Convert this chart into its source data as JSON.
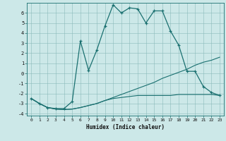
{
  "xlabel": "Humidex (Indice chaleur)",
  "background_color": "#cce8e8",
  "line_color": "#1a7070",
  "xlim": [
    -0.5,
    23.5
  ],
  "ylim": [
    -4.2,
    7.0
  ],
  "yticks": [
    -4,
    -3,
    -2,
    -1,
    0,
    1,
    2,
    3,
    4,
    5,
    6
  ],
  "xticks": [
    0,
    1,
    2,
    3,
    4,
    5,
    6,
    7,
    8,
    9,
    10,
    11,
    12,
    13,
    14,
    15,
    16,
    17,
    18,
    19,
    20,
    21,
    22,
    23
  ],
  "line1_x": [
    0,
    1,
    2,
    3,
    4,
    5,
    6,
    7,
    8,
    9,
    10,
    11,
    12,
    13,
    14,
    15,
    16,
    17,
    18,
    19,
    20,
    21,
    22,
    23
  ],
  "line1_y": [
    -2.5,
    -3.0,
    -3.4,
    -3.5,
    -3.5,
    -2.8,
    3.2,
    0.3,
    2.3,
    4.7,
    6.8,
    6.0,
    6.5,
    6.4,
    5.0,
    6.2,
    6.2,
    4.2,
    2.8,
    0.2,
    0.2,
    -1.3,
    -1.9,
    -2.2
  ],
  "line2_x": [
    0,
    1,
    2,
    3,
    4,
    5,
    6,
    7,
    8,
    9,
    10,
    11,
    12,
    13,
    14,
    15,
    16,
    17,
    18,
    19,
    20,
    21,
    22,
    23
  ],
  "line2_y": [
    -2.5,
    -3.0,
    -3.4,
    -3.55,
    -3.6,
    -3.55,
    -3.4,
    -3.2,
    -3.0,
    -2.7,
    -2.4,
    -2.1,
    -1.8,
    -1.5,
    -1.2,
    -0.9,
    -0.5,
    -0.2,
    0.1,
    0.4,
    0.8,
    1.1,
    1.3,
    1.6
  ],
  "line3_x": [
    0,
    1,
    2,
    3,
    4,
    5,
    6,
    7,
    8,
    9,
    10,
    11,
    12,
    13,
    14,
    15,
    16,
    17,
    18,
    19,
    20,
    21,
    22,
    23
  ],
  "line3_y": [
    -2.5,
    -3.0,
    -3.4,
    -3.55,
    -3.6,
    -3.55,
    -3.4,
    -3.2,
    -3.0,
    -2.7,
    -2.5,
    -2.4,
    -2.3,
    -2.2,
    -2.2,
    -2.2,
    -2.2,
    -2.2,
    -2.1,
    -2.1,
    -2.1,
    -2.1,
    -2.1,
    -2.2
  ]
}
